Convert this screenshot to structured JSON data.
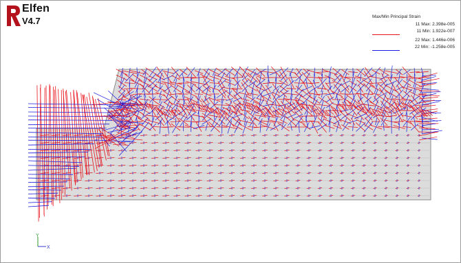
{
  "app": {
    "name": "Elfen",
    "version": "V4.7"
  },
  "legend": {
    "title": "Max/Min Principal Strain",
    "entries": [
      {
        "label": "11 Max: 2.398e-005",
        "color": "#e8141c"
      },
      {
        "label": "11 Min: 1.922e-007",
        "color": "#e8141c"
      },
      {
        "label": "22 Max: 1.446e-006",
        "color": "#1a1ae0"
      },
      {
        "label": "22 Min: -1.258e-005",
        "color": "#1a1ae0"
      }
    ]
  },
  "axis": {
    "y_label": "Y",
    "x_label": "X"
  },
  "colors": {
    "red_strain": "#e8141c",
    "blue_strain": "#1a1ae0",
    "mesh_fill": "#dcdcdc",
    "mesh_edge": "#8a8a8a",
    "axis_y": "#2a9a2a",
    "axis_x": "#3a3ad0"
  }
}
